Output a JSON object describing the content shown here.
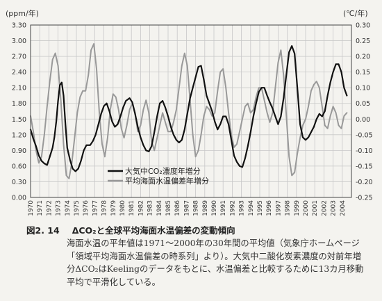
{
  "left_unit": "(ppm/年)",
  "right_unit": "(℃/年)",
  "caption": {
    "number": "図2. 14",
    "title": "ΔCO₂と全球平均海面水温偏差の変動傾向",
    "body": "海面水温の平年値は1971～2000年の30年間の平均値（気象庁ホームページ「領域平均海面水温偏差の時系列」より）。大気中二酸化炭素濃度の対前年増分ΔCO₂はKeelingのデータをもとに、水温偏差と比較するために13カ月移動平均で平滑化している。"
  },
  "chart_data": {
    "type": "line",
    "x_ticks": [
      "1970",
      "1971",
      "1972",
      "1973",
      "1974",
      "1975",
      "1976",
      "1977",
      "1978",
      "1979",
      "1980",
      "1981",
      "1982",
      "1983",
      "1984",
      "1985",
      "1986",
      "1987",
      "1988",
      "1989",
      "1990",
      "1991",
      "1992",
      "1993",
      "1994",
      "1995",
      "1996",
      "1997",
      "1998",
      "1999",
      "2000",
      "2001",
      "2002",
      "2003",
      "2004"
    ],
    "xlim": [
      1970,
      2005
    ],
    "y_left": {
      "ticks": [
        "0.00",
        "0.30",
        "0.60",
        "0.90",
        "1.20",
        "1.50",
        "1.80",
        "2.10",
        "2.40",
        "2.70",
        "3.00",
        "3.30"
      ],
      "lim": [
        0,
        3.3
      ]
    },
    "y_right": {
      "ticks": [
        "-0.25",
        "-0.20",
        "-0.15",
        "-0.10",
        "-0.05",
        "0.00",
        "0.05",
        "0.10",
        "0.15",
        "0.20",
        "0.25",
        "0.30"
      ],
      "lim": [
        -0.25,
        0.3
      ]
    },
    "grid": true,
    "legend_position": "lower-middle",
    "series": [
      {
        "name": "大気中CO₂濃度年増分",
        "axis": "left",
        "color": "#111111",
        "x": [
          1970,
          1970.3,
          1970.6,
          1970.9,
          1971.2,
          1971.5,
          1971.8,
          1972.1,
          1972.4,
          1972.6,
          1972.8,
          1973.0,
          1973.2,
          1973.4,
          1973.6,
          1973.8,
          1974.0,
          1974.3,
          1974.6,
          1974.9,
          1975.2,
          1975.5,
          1975.8,
          1976.1,
          1976.5,
          1976.8,
          1977.1,
          1977.4,
          1977.7,
          1978.0,
          1978.3,
          1978.6,
          1978.9,
          1979.2,
          1979.5,
          1979.8,
          1980.1,
          1980.4,
          1980.8,
          1981.1,
          1981.4,
          1981.7,
          1982.0,
          1982.3,
          1982.6,
          1982.9,
          1983.2,
          1983.5,
          1983.8,
          1984.1,
          1984.4,
          1984.7,
          1985.0,
          1985.3,
          1985.6,
          1985.9,
          1986.2,
          1986.5,
          1986.8,
          1987.1,
          1987.4,
          1987.7,
          1988.0,
          1988.3,
          1988.6,
          1988.9,
          1989.2,
          1989.5,
          1989.8,
          1990.1,
          1990.4,
          1990.7,
          1991.0,
          1991.3,
          1991.6,
          1991.9,
          1992.2,
          1992.5,
          1992.8,
          1993.1,
          1993.4,
          1993.7,
          1994.0,
          1994.3,
          1994.6,
          1994.9,
          1995.2,
          1995.5,
          1995.8,
          1996.1,
          1996.4,
          1996.7,
          1997.0,
          1997.3,
          1997.6,
          1997.9,
          1998.2,
          1998.5,
          1998.8,
          1999.1,
          1999.4,
          1999.7,
          2000.0,
          2000.3,
          2000.6,
          2000.9,
          2001.2,
          2001.5,
          2001.8,
          2002.1,
          2002.4,
          2002.7,
          2003.0,
          2003.3,
          2003.6,
          2003.9,
          2004.2,
          2004.5
        ],
        "values": [
          1.3,
          1.12,
          0.98,
          0.8,
          0.7,
          0.65,
          0.62,
          0.78,
          0.95,
          1.15,
          1.45,
          1.85,
          2.15,
          2.2,
          1.95,
          1.4,
          0.95,
          0.72,
          0.55,
          0.5,
          0.55,
          0.7,
          0.9,
          1.0,
          1.0,
          1.08,
          1.2,
          1.4,
          1.6,
          1.75,
          1.8,
          1.65,
          1.45,
          1.35,
          1.4,
          1.55,
          1.72,
          1.85,
          1.9,
          1.82,
          1.6,
          1.35,
          1.15,
          1.0,
          0.9,
          0.88,
          0.98,
          1.25,
          1.55,
          1.8,
          1.85,
          1.72,
          1.55,
          1.35,
          1.2,
          1.1,
          1.05,
          1.1,
          1.3,
          1.6,
          1.9,
          2.1,
          2.3,
          2.5,
          2.52,
          2.25,
          1.95,
          1.8,
          1.65,
          1.45,
          1.3,
          1.4,
          1.55,
          1.55,
          1.4,
          1.1,
          0.8,
          0.68,
          0.6,
          0.58,
          0.75,
          0.98,
          1.25,
          1.55,
          1.8,
          2.02,
          2.1,
          2.1,
          1.95,
          1.82,
          1.7,
          1.55,
          1.4,
          1.55,
          1.9,
          2.35,
          2.78,
          2.9,
          2.75,
          2.1,
          1.4,
          1.15,
          1.1,
          1.15,
          1.25,
          1.35,
          1.5,
          1.6,
          1.55,
          1.65,
          1.95,
          2.2,
          2.4,
          2.55,
          2.55,
          2.4,
          2.1,
          1.95
        ]
      },
      {
        "name": "平均海面水温偏差年増分",
        "axis": "right",
        "color": "#999999",
        "x": [
          1970,
          1970.3,
          1970.6,
          1970.9,
          1971.2,
          1971.5,
          1971.8,
          1972.1,
          1972.4,
          1972.7,
          1973.0,
          1973.3,
          1973.6,
          1973.9,
          1974.2,
          1974.5,
          1974.8,
          1975.1,
          1975.4,
          1975.7,
          1976.0,
          1976.3,
          1976.6,
          1976.9,
          1977.2,
          1977.5,
          1977.8,
          1978.1,
          1978.4,
          1978.7,
          1979.0,
          1979.3,
          1979.6,
          1979.9,
          1980.2,
          1980.5,
          1980.8,
          1981.1,
          1981.4,
          1981.7,
          1982.0,
          1982.3,
          1982.6,
          1982.9,
          1983.2,
          1983.5,
          1983.8,
          1984.1,
          1984.4,
          1984.7,
          1985.0,
          1985.3,
          1985.6,
          1985.9,
          1986.2,
          1986.5,
          1986.8,
          1987.1,
          1987.4,
          1987.7,
          1988.0,
          1988.3,
          1988.6,
          1988.9,
          1989.2,
          1989.5,
          1989.8,
          1990.1,
          1990.4,
          1990.7,
          1991.0,
          1991.3,
          1991.6,
          1991.9,
          1992.2,
          1992.5,
          1992.8,
          1993.1,
          1993.4,
          1993.7,
          1994.0,
          1994.3,
          1994.6,
          1994.9,
          1995.2,
          1995.5,
          1995.8,
          1996.1,
          1996.4,
          1996.7,
          1997.0,
          1997.3,
          1997.6,
          1997.9,
          1998.2,
          1998.5,
          1998.8,
          1999.1,
          1999.4,
          1999.7,
          2000.0,
          2000.3,
          2000.6,
          2000.9,
          2001.2,
          2001.5,
          2001.8,
          2002.1,
          2002.4,
          2002.7,
          2003.0,
          2003.3,
          2003.6,
          2003.9,
          2004.2,
          2004.5
        ],
        "values": [
          0.01,
          -0.04,
          -0.1,
          -0.14,
          -0.12,
          -0.05,
          0.04,
          0.12,
          0.19,
          0.21,
          0.17,
          0.06,
          -0.08,
          -0.18,
          -0.19,
          -0.14,
          -0.06,
          0.02,
          0.07,
          0.09,
          0.09,
          0.14,
          0.22,
          0.24,
          0.16,
          0.02,
          -0.08,
          -0.12,
          -0.06,
          0.03,
          0.08,
          0.07,
          0.03,
          -0.03,
          -0.06,
          -0.02,
          0.03,
          0.05,
          0.02,
          -0.04,
          -0.02,
          0.03,
          0.06,
          0.02,
          -0.07,
          -0.1,
          -0.06,
          -0.02,
          0.02,
          -0.01,
          -0.04,
          -0.04,
          -0.01,
          0.03,
          0.1,
          0.17,
          0.21,
          0.17,
          0.06,
          -0.05,
          -0.12,
          -0.1,
          -0.05,
          0.01,
          0.04,
          0.03,
          0.01,
          0.02,
          0.09,
          0.15,
          0.16,
          0.1,
          0.02,
          -0.05,
          -0.09,
          -0.08,
          -0.04,
          0.0,
          0.04,
          0.05,
          0.02,
          0.03,
          0.07,
          0.1,
          0.1,
          0.06,
          0.02,
          -0.01,
          0.02,
          0.1,
          0.18,
          0.22,
          0.14,
          0.01,
          -0.12,
          -0.18,
          -0.17,
          -0.11,
          -0.06,
          -0.02,
          0.0,
          0.04,
          0.09,
          0.11,
          0.12,
          0.1,
          0.04,
          -0.02,
          -0.03,
          0.01,
          0.04,
          0.02,
          -0.02,
          -0.03,
          0.01,
          0.02
        ]
      }
    ]
  }
}
